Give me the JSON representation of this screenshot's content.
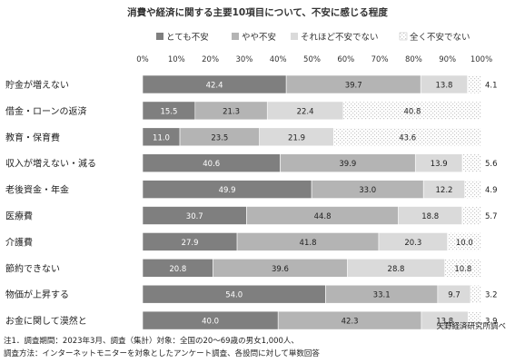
{
  "title": "消費や経済に関する主要10項目について、不安に感じる程度",
  "source": "矢野経済研究所調べ",
  "notes": [
    "注1．調査期間：2023年3月、調査（集計）対象：全国の20～69歳の男女1,000人、",
    "調査方法：インターネットモニターを対象としたアンケート調査、各設問に対して単数回答"
  ],
  "chart_data": {
    "type": "bar",
    "orientation": "horizontal",
    "stacked": true,
    "percent_stacked": true,
    "xlim": [
      0,
      100
    ],
    "ticks": [
      "0%",
      "10%",
      "20%",
      "30%",
      "40%",
      "50%",
      "60%",
      "70%",
      "80%",
      "90%",
      "100%"
    ],
    "grid": false,
    "legend_position": "top",
    "categories": [
      "貯金が増えない",
      "借金・ローンの返済",
      "教育・保育費",
      "収入が増えない・減る",
      "老後資金・年金",
      "医療費",
      "介護費",
      "節約できない",
      "物価が上昇する",
      "お金に関して漠然と"
    ],
    "series": [
      {
        "name": "とても不安",
        "color": "#7f7f7f",
        "values": [
          42.4,
          15.5,
          11.0,
          40.6,
          49.9,
          30.7,
          27.9,
          20.8,
          54.0,
          40.0
        ],
        "labels": [
          "42.4",
          "15.5",
          "11.0",
          "40.6",
          "49.9",
          "30.7",
          "27.9",
          "20.8",
          "54.0",
          "40.0"
        ]
      },
      {
        "name": "やや不安",
        "color": "#b4b4b4",
        "values": [
          39.7,
          21.3,
          23.5,
          39.9,
          33.0,
          44.8,
          41.8,
          39.6,
          33.1,
          42.3
        ],
        "labels": [
          "39.7",
          "21.3",
          "23.5",
          "39.9",
          "33.0",
          "44.8",
          "41.8",
          "39.6",
          "33.1",
          "42.3"
        ]
      },
      {
        "name": "それほど不安でない",
        "color": "#dadada",
        "values": [
          13.8,
          22.4,
          21.9,
          13.9,
          12.2,
          18.8,
          20.3,
          28.8,
          9.7,
          13.8
        ],
        "labels": [
          "13.8",
          "22.4",
          "21.9",
          "13.9",
          "12.2",
          "18.8",
          "20.3",
          "28.8",
          "9.7",
          "13.8"
        ]
      },
      {
        "name": "全く不安でない",
        "color": "#f4f4f4",
        "values": [
          4.1,
          40.8,
          43.6,
          5.6,
          4.9,
          5.7,
          10.0,
          10.8,
          3.2,
          3.9
        ],
        "labels": [
          "4.1",
          "40.8",
          "43.6",
          "5.6",
          "4.9",
          "5.7",
          "10.0",
          "10.8",
          "3.2",
          "3.9"
        ]
      }
    ]
  }
}
